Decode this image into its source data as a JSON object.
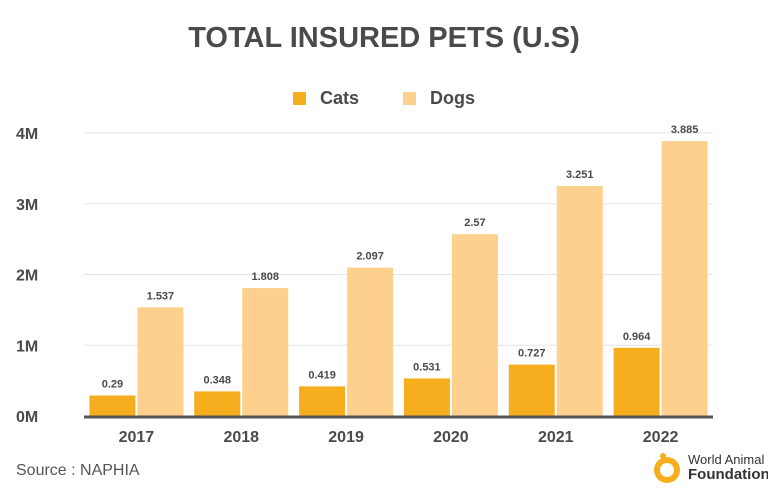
{
  "chart_data": {
    "type": "bar",
    "title": "TOTAL INSURED PETS (U.S)",
    "categories": [
      "2017",
      "2018",
      "2019",
      "2020",
      "2021",
      "2022"
    ],
    "series": [
      {
        "name": "Cats",
        "values": [
          0.29,
          0.348,
          0.419,
          0.531,
          0.727,
          0.964
        ],
        "labels": [
          "0.29",
          "0.348",
          "0.419",
          "0.531",
          "0.727",
          "0.964"
        ],
        "color": "#F6AD1E"
      },
      {
        "name": "Dogs",
        "values": [
          1.537,
          1.808,
          2.097,
          2.57,
          3.251,
          3.885
        ],
        "labels": [
          "1.537",
          "1.808",
          "2.097",
          "2.57",
          "3.251",
          "3.885"
        ],
        "color": "#FDD08E"
      }
    ],
    "ylim": [
      0,
      4
    ],
    "yticks": [
      "0M",
      "1M",
      "2M",
      "3M",
      "4M"
    ],
    "grid": true,
    "legend_placement": "top-center"
  },
  "source": "Source : NAPHIA",
  "logo": {
    "line1": "World Animal",
    "line2": "Foundation"
  }
}
